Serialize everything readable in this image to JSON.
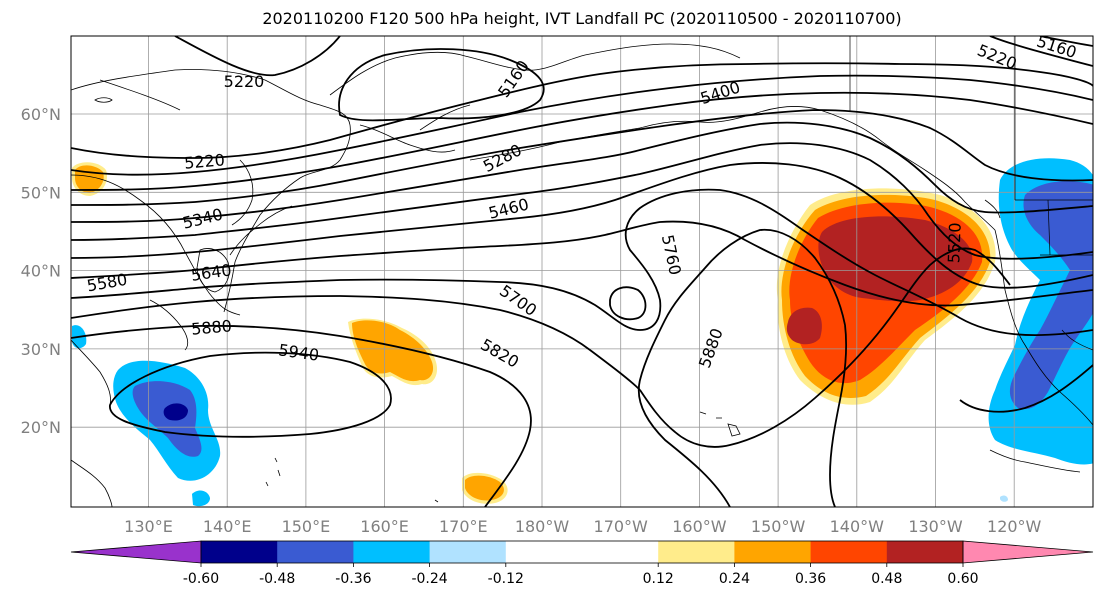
{
  "title": "2020110200 F120 500 hPa height, IVT Landfall PC (2020110500 - 2020110700)",
  "lon_labels": [
    "130°E",
    "140°E",
    "150°E",
    "160°E",
    "170°E",
    "180°W",
    "170°W",
    "160°W",
    "150°W",
    "140°W",
    "130°W",
    "120°W"
  ],
  "lat_labels": [
    "60°N",
    "50°N",
    "40°N",
    "30°N",
    "20°N"
  ],
  "colorbar": {
    "colors": [
      "#9932cc",
      "#00008b",
      "#3a5bd2",
      "#00bfff",
      "#b0e2ff",
      "#ffffff",
      "#ffffff",
      "#ffec8b",
      "#ffa500",
      "#ff4500",
      "#b22222",
      "#ff88b0"
    ],
    "labels": [
      "-0.60",
      "-0.48",
      "-0.36",
      "-0.24",
      "-0.12",
      "0.12",
      "0.24",
      "0.36",
      "0.48",
      "0.60"
    ]
  },
  "contour_labels": {
    "c5220_nw": "5220",
    "c5220_w": "5220",
    "c5160_n": "5160",
    "c5400": "5400",
    "c5280": "5280",
    "c5460": "5460",
    "c5340": "5340",
    "c5580": "5580",
    "c5640": "5640",
    "c5880_w": "5880",
    "c5940": "5940",
    "c5760": "5760",
    "c5700": "5700",
    "c5820": "5820",
    "c5880_c": "5880",
    "c5520": "5520",
    "c5220_ne": "5220",
    "c5160_ne": "5160"
  }
}
